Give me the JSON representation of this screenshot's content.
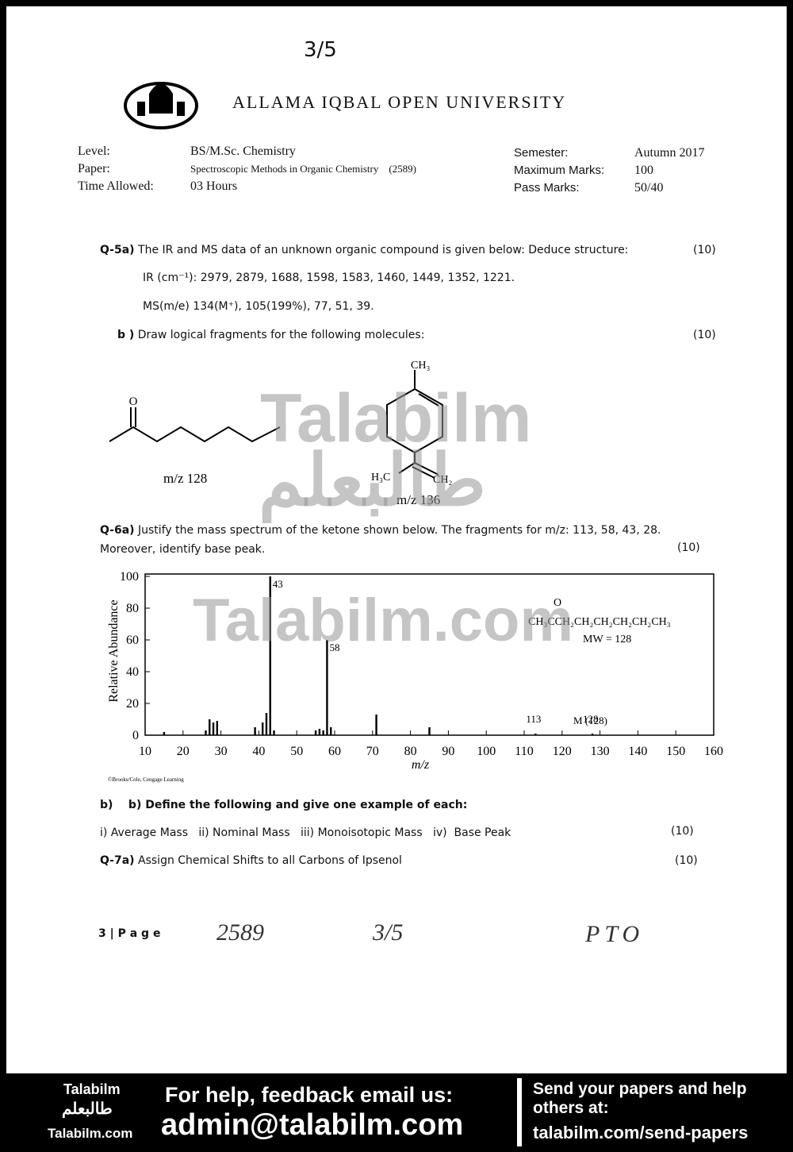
{
  "page_number": "3/5",
  "header": {
    "university": "ALLAMA IQBAL OPEN UNIVERSITY"
  },
  "info": {
    "left": [
      [
        "Level:",
        "BS/M.Sc. Chemistry"
      ],
      [
        "Paper:",
        "Spectroscopic Methods in Organic Chemistry    (2589)"
      ],
      [
        "Time Allowed:",
        "03 Hours"
      ]
    ],
    "right": [
      [
        "Semester:",
        "Autumn 2017"
      ],
      [
        "Maximum Marks:",
        "100"
      ],
      [
        "Pass Marks:",
        "50/40"
      ]
    ]
  },
  "q5": {
    "label": "Q-5a)",
    "text": "The IR and MS data of an unknown organic compound is given below: Deduce structure:",
    "marks": "(10)",
    "ir": "IR (cm⁻¹): 2979, 2879, 1688, 1598, 1583, 1460, 1449, 1352, 1221.",
    "ms": "MS(m/e) 134(M⁺), 105(199%), 77, 51, 39.",
    "b_label": "b )",
    "b_text": "Draw logical fragments for the following molecules:",
    "b_marks": "(10)",
    "mol1": {
      "oxygen": "O",
      "caption": "m/z 128"
    },
    "mol2": {
      "methyl": "CH₃",
      "left": "H₃C",
      "right": "CH₂",
      "caption": "m/z 136"
    }
  },
  "q6": {
    "label": "Q-6a)",
    "text": "Justify the mass spectrum of the ketone shown below. The fragments for m/z: 113, 58, 43, 28.",
    "text2": "Moreover, identify base peak.",
    "marks": "(10)"
  },
  "chart_data": {
    "type": "bar",
    "xlabel": "m/z",
    "ylabel": "Relative Abundance",
    "color": "#000000",
    "x": [
      15,
      26,
      27,
      28,
      29,
      39,
      41,
      42,
      43,
      44,
      55,
      56,
      57,
      58,
      59,
      71,
      85,
      113,
      128
    ],
    "values": [
      2,
      3,
      10,
      8,
      9,
      5,
      8,
      14,
      100,
      3,
      3,
      4,
      3,
      60,
      5,
      13,
      5,
      1,
      1
    ],
    "xlim": [
      10,
      160
    ],
    "xticks": [
      10,
      20,
      30,
      40,
      50,
      60,
      70,
      80,
      90,
      100,
      110,
      120,
      130,
      140,
      150,
      160
    ],
    "ylim": [
      0,
      100
    ],
    "yticks": [
      0,
      20,
      40,
      60,
      80,
      100
    ],
    "molecular_ion_label": "M (128)",
    "formula_o": "O",
    "formula": "CH₃CCH₂CH₂CH₂CH₂CH₂CH₃",
    "mw": "MW = 128",
    "credit": "©Brooks/Cole, Cengage Learning"
  },
  "q6b": {
    "label": "b)",
    "text": "b) Define the following and give one example of each:",
    "items": "i) Average Mass   ii) Nominal Mass   iii) Monoisotopic Mass   iv)  Base Peak",
    "marks": "(10)"
  },
  "q7": {
    "label": "Q-7a)",
    "text": "Assign Chemical Shifts to all Carbons of Ipsenol",
    "marks": "(10)"
  },
  "footer": {
    "page": "3 | P a g e",
    "hand1": "2589",
    "hand2": "3/5",
    "hand3": "PTO"
  },
  "watermark": {
    "latin": "Talabilm",
    "urdu": "طالبعلم",
    "site": "Talabilm.com"
  },
  "banner": {
    "brand": "Talabilm",
    "brand_urdu": "طالبعلم",
    "brand_site": "Talabilm.com",
    "help": "For help, feedback email us:",
    "email": "admin@talabilm.com",
    "send": "Send your papers and help others at:",
    "send_url": "talabilm.com/send-papers"
  }
}
